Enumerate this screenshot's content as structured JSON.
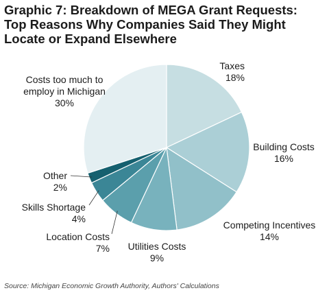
{
  "title": "Graphic 7: Breakdown of MEGA Grant Requests:\nTop Reasons Why Companies Said They Might\nLocate or Expand Elsewhere",
  "source": "Source: Michigan Economic Growth Authority, Authors' Calculations",
  "chart_data": {
    "type": "pie",
    "title": "Graphic 7: Breakdown of MEGA Grant Requests: Top Reasons Why Companies Said They Might Locate or Expand Elsewhere",
    "slices": [
      {
        "label": "Taxes",
        "value": 18,
        "value_label": "18%",
        "color": "#c6dee2"
      },
      {
        "label": "Building Costs",
        "value": 16,
        "value_label": "16%",
        "color": "#abcfd6"
      },
      {
        "label": "Competing Incentives",
        "value": 14,
        "value_label": "14%",
        "color": "#91c0c9"
      },
      {
        "label": "Utilities Costs",
        "value": 9,
        "value_label": "9%",
        "color": "#78b2bd"
      },
      {
        "label": "Location Costs",
        "value": 7,
        "value_label": "7%",
        "color": "#5b9fac"
      },
      {
        "label": "Skills Shortage",
        "value": 4,
        "value_label": "4%",
        "color": "#3b8696"
      },
      {
        "label": "Other",
        "value": 2,
        "value_label": "2%",
        "color": "#15606f"
      },
      {
        "label": "Costs too much to employ in Michigan",
        "value": 30,
        "value_label": "30%",
        "color": "#e4eff2"
      }
    ]
  }
}
